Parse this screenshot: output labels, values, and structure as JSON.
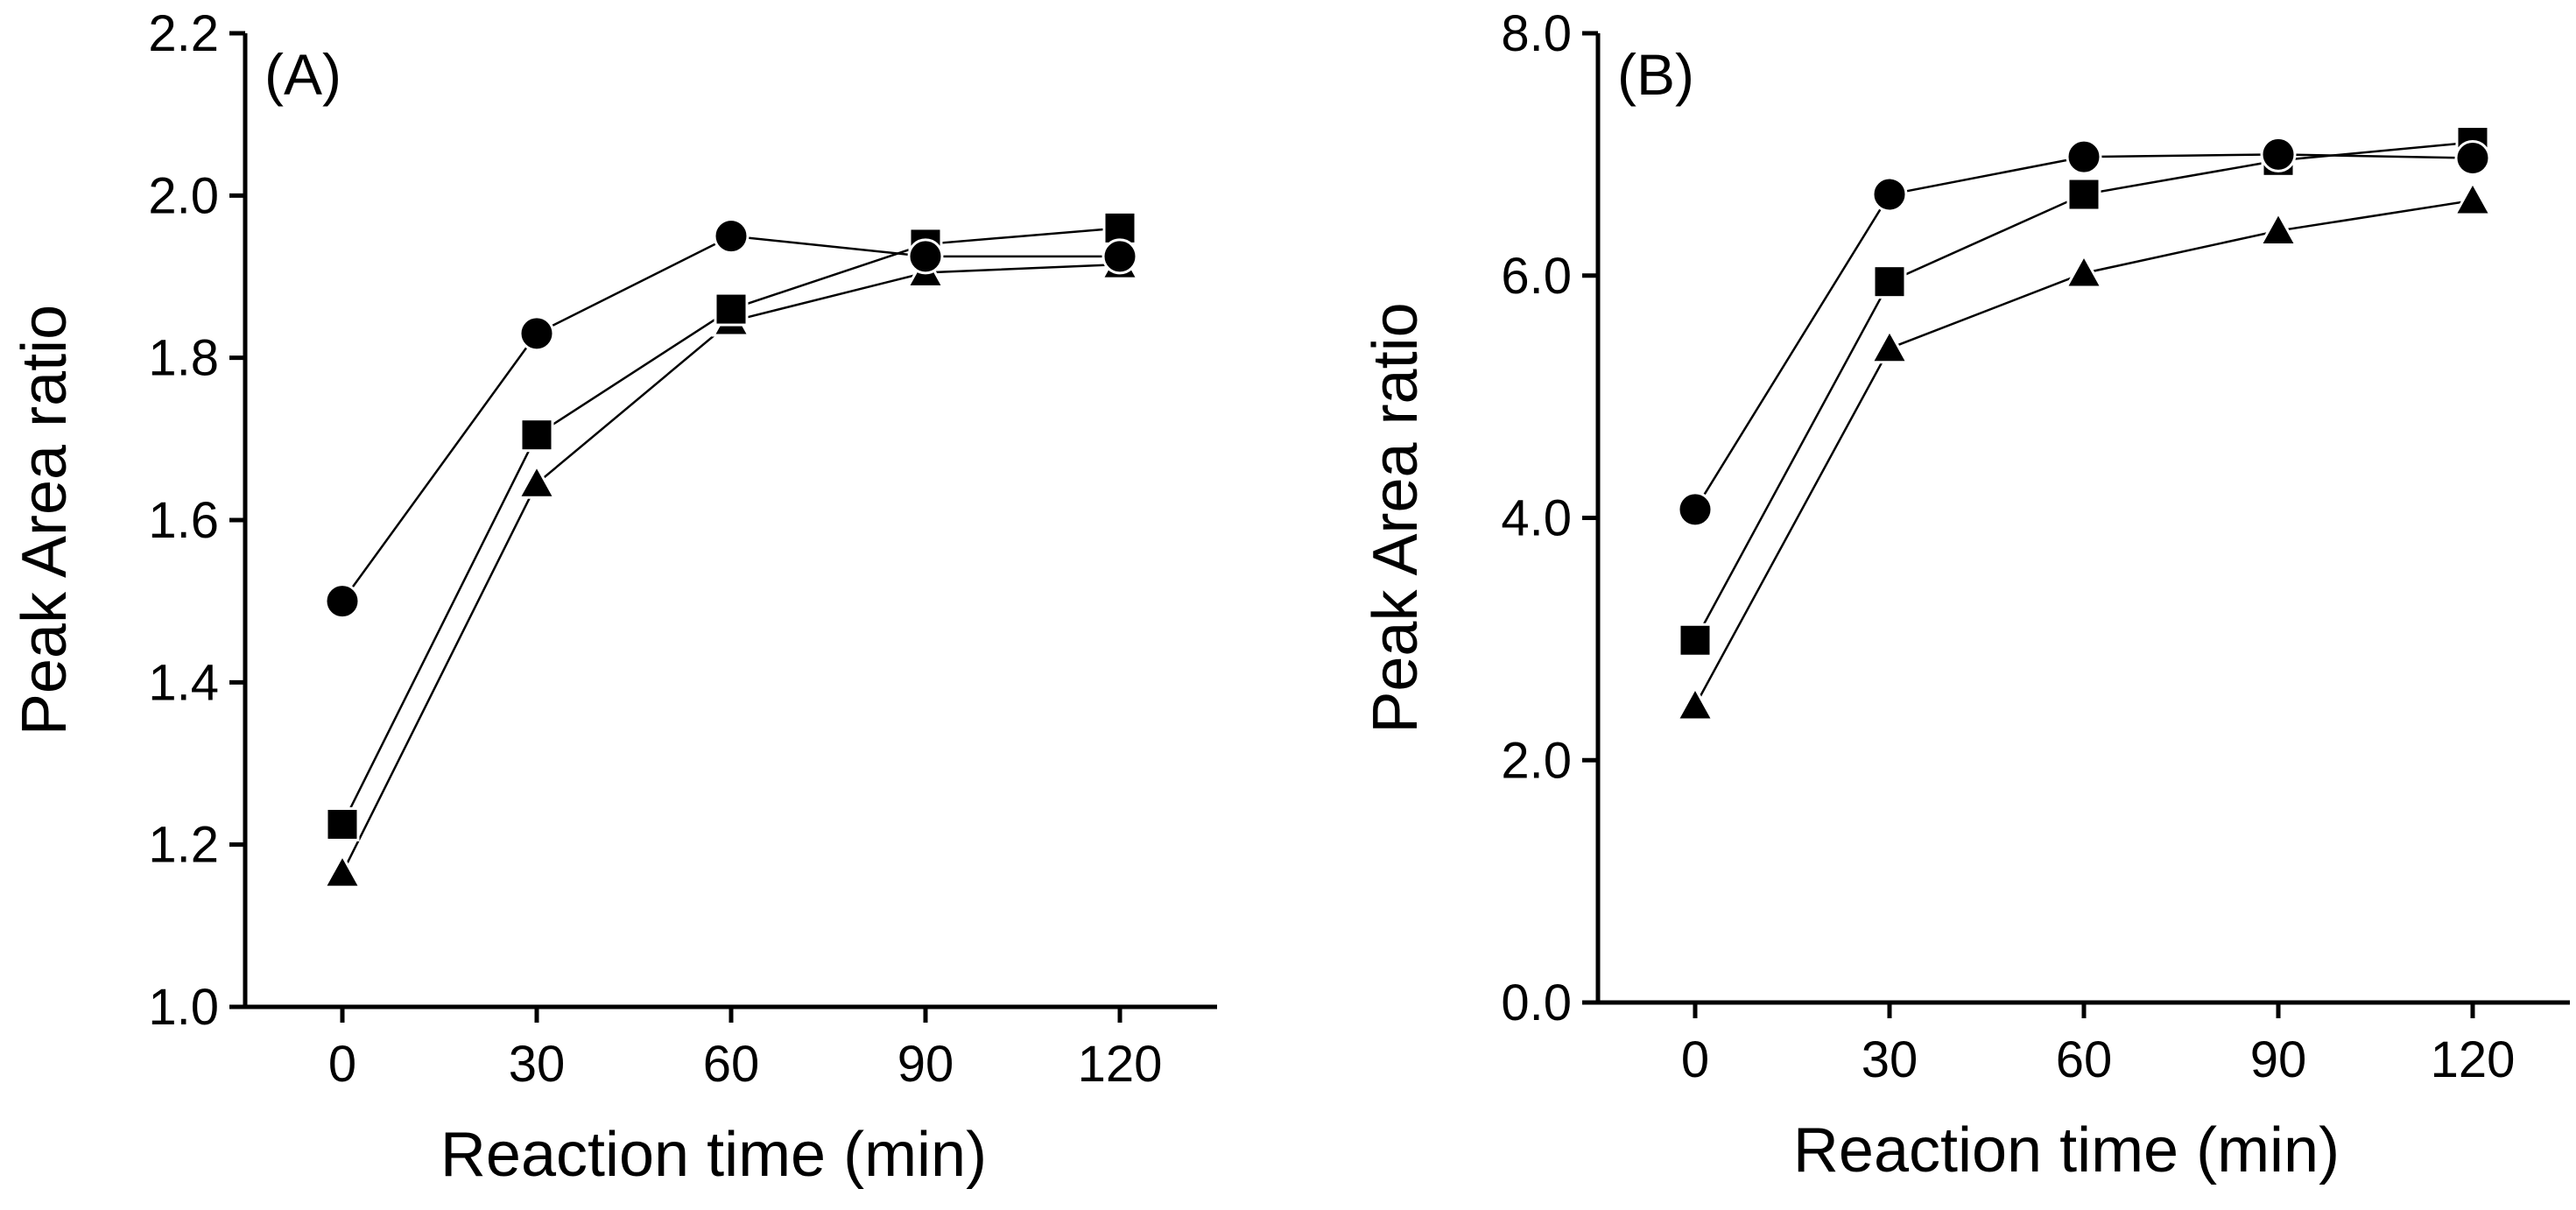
{
  "chart_data": [
    {
      "type": "line",
      "panel_label": "(A)",
      "xlabel": "Reaction time (min)",
      "ylabel": "Peak Area ratio",
      "x": [
        0,
        30,
        60,
        90,
        120
      ],
      "xticks": [
        "0",
        "30",
        "60",
        "90",
        "120"
      ],
      "xlim": [
        -15,
        135
      ],
      "ylim": [
        1.0,
        2.2
      ],
      "yticks": [
        "1.0",
        "1.2",
        "1.4",
        "1.6",
        "1.8",
        "2.0",
        "2.2"
      ],
      "grid": false,
      "series": [
        {
          "marker": "circle",
          "values": [
            1.5,
            1.83,
            1.95,
            1.925,
            1.925
          ]
        },
        {
          "marker": "square",
          "values": [
            1.225,
            1.705,
            1.86,
            1.94,
            1.96
          ]
        },
        {
          "marker": "triangle",
          "values": [
            1.165,
            1.645,
            1.845,
            1.905,
            1.915
          ]
        }
      ]
    },
    {
      "type": "line",
      "panel_label": "(B)",
      "xlabel": "Reaction time (min)",
      "ylabel": "Peak Area ratio",
      "x": [
        0,
        30,
        60,
        90,
        120
      ],
      "xticks": [
        "0",
        "30",
        "60",
        "90",
        "120"
      ],
      "xlim": [
        -15,
        135
      ],
      "ylim": [
        0.0,
        8.0
      ],
      "yticks": [
        "0.0",
        "2.0",
        "4.0",
        "6.0",
        "8.0"
      ],
      "grid": false,
      "series": [
        {
          "marker": "circle",
          "values": [
            4.07,
            6.67,
            6.98,
            7.0,
            6.97
          ]
        },
        {
          "marker": "square",
          "values": [
            2.99,
            5.95,
            6.67,
            6.95,
            7.1
          ]
        },
        {
          "marker": "triangle",
          "values": [
            2.45,
            5.4,
            6.02,
            6.37,
            6.62
          ]
        }
      ]
    }
  ]
}
